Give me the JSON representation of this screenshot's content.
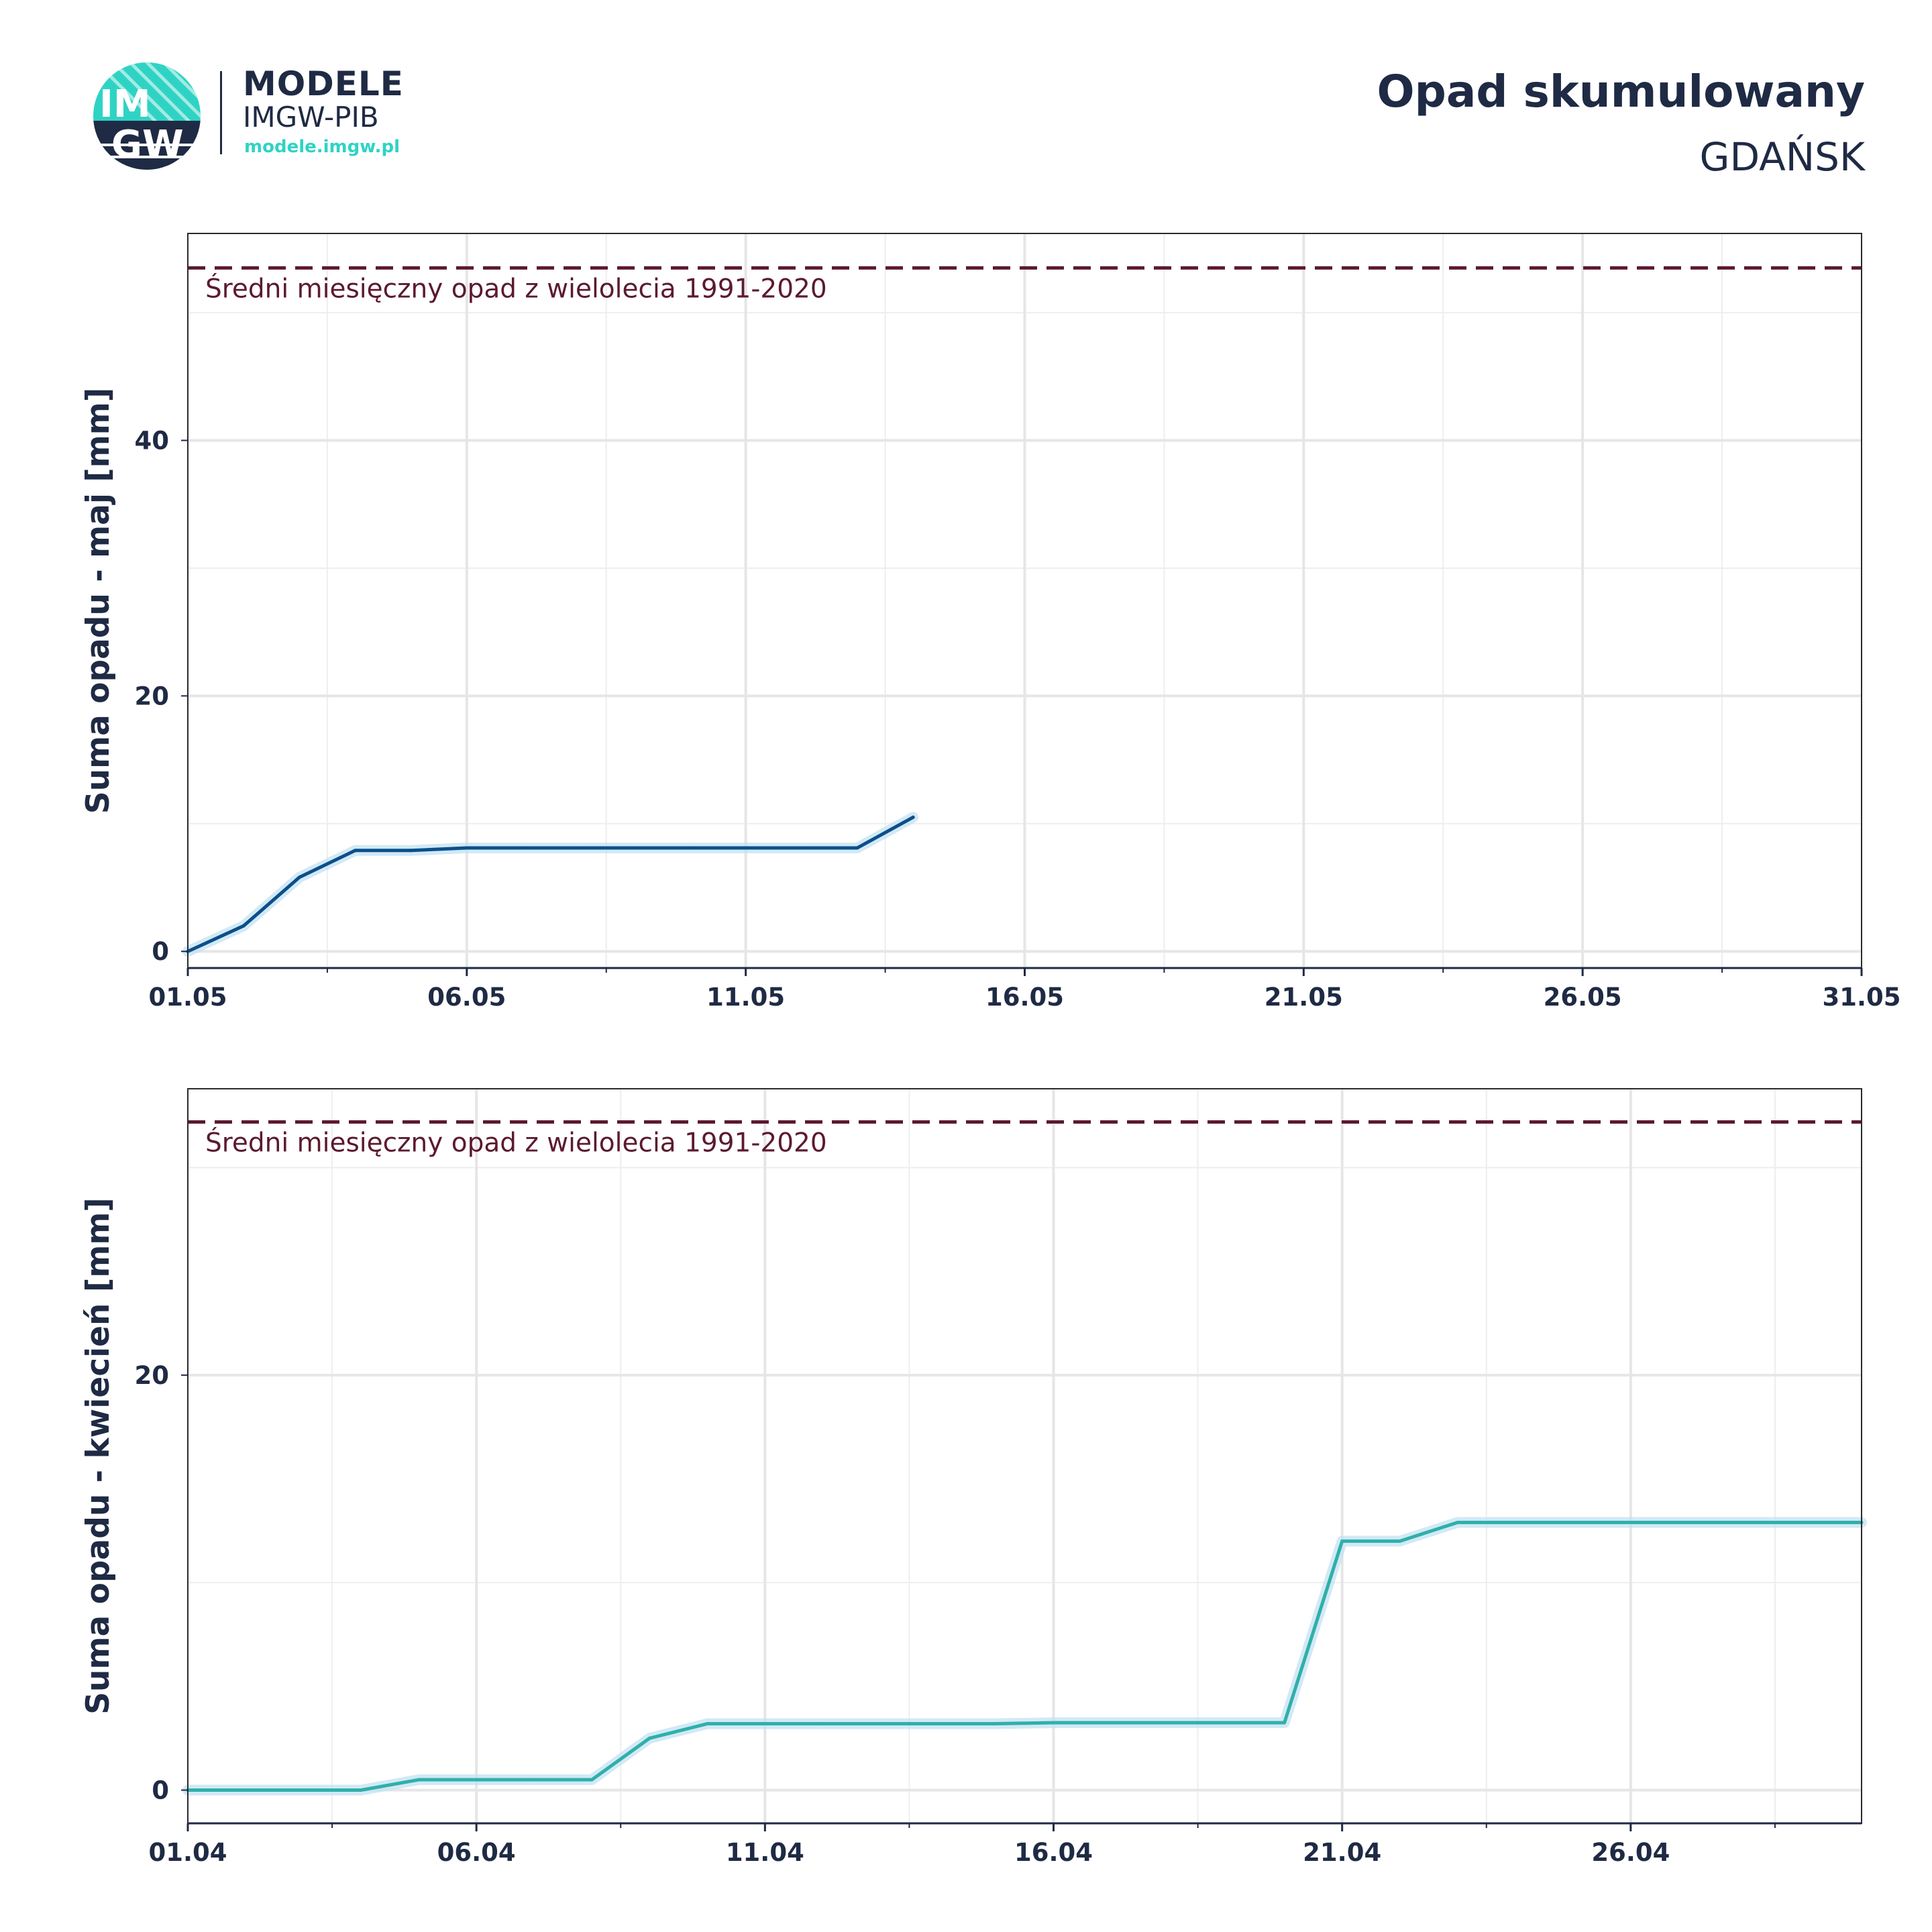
{
  "header": {
    "logo_text_top": "IM",
    "logo_text_bottom": "GW",
    "brand_title": "MODELE",
    "brand_subtitle": "IMGW-PIB",
    "brand_url": "modele.imgw.pl",
    "title": "Opad skumulowany",
    "subtitle": "GDAŃSK"
  },
  "colors": {
    "may_line": "#0b4f8a",
    "april_line": "#2fb0a8",
    "reference_line": "#5c1a2e",
    "band": "#bfe0f2"
  },
  "chart_data": [
    {
      "type": "line",
      "ylabel": "Suma opadu - maj  [mm]",
      "xlim": [
        1,
        31
      ],
      "ylim": [
        -1.3,
        56.2
      ],
      "yticks": [
        0,
        20,
        40
      ],
      "xticks": [
        1,
        6,
        11,
        16,
        21,
        26,
        31
      ],
      "xtick_labels": [
        "01.05",
        "06.05",
        "11.05",
        "16.05",
        "21.05",
        "26.05",
        "31.05"
      ],
      "grid": true,
      "reference": {
        "value": 53.5,
        "label": "Średni miesięczny opad z wielolecia 1991-2020"
      },
      "series": [
        {
          "x": [
            1,
            2,
            3,
            4,
            5,
            6,
            7,
            8,
            9,
            10,
            11,
            12,
            13,
            14
          ],
          "y": [
            0,
            2.0,
            5.8,
            7.9,
            7.9,
            8.1,
            8.1,
            8.1,
            8.1,
            8.1,
            8.1,
            8.1,
            8.1,
            10.5
          ]
        }
      ]
    },
    {
      "type": "line",
      "ylabel": "Suma opadu - kwiecień  [mm]",
      "xlim": [
        1,
        30
      ],
      "ylim": [
        -1.6,
        33.8
      ],
      "yticks": [
        0,
        20
      ],
      "xticks": [
        1,
        6,
        11,
        16,
        21,
        26
      ],
      "xtick_labels": [
        "01.04",
        "06.04",
        "11.04",
        "16.04",
        "21.04",
        "26.04"
      ],
      "grid": true,
      "reference": {
        "value": 32.2,
        "label": "Średni miesięczny opad z wielolecia 1991-2020"
      },
      "series": [
        {
          "x": [
            1,
            2,
            3,
            4,
            5,
            6,
            7,
            8,
            9,
            10,
            11,
            12,
            13,
            14,
            15,
            16,
            17,
            18,
            19,
            20,
            21,
            22,
            23,
            24,
            25,
            26,
            27,
            28,
            29,
            30
          ],
          "y": [
            0,
            0,
            0,
            0,
            0.5,
            0.5,
            0.5,
            0.5,
            2.5,
            3.2,
            3.2,
            3.2,
            3.2,
            3.2,
            3.2,
            3.25,
            3.25,
            3.25,
            3.25,
            3.25,
            12.0,
            12.0,
            12.9,
            12.9,
            12.9,
            12.9,
            12.9,
            12.9,
            12.9,
            12.9
          ]
        }
      ]
    }
  ]
}
